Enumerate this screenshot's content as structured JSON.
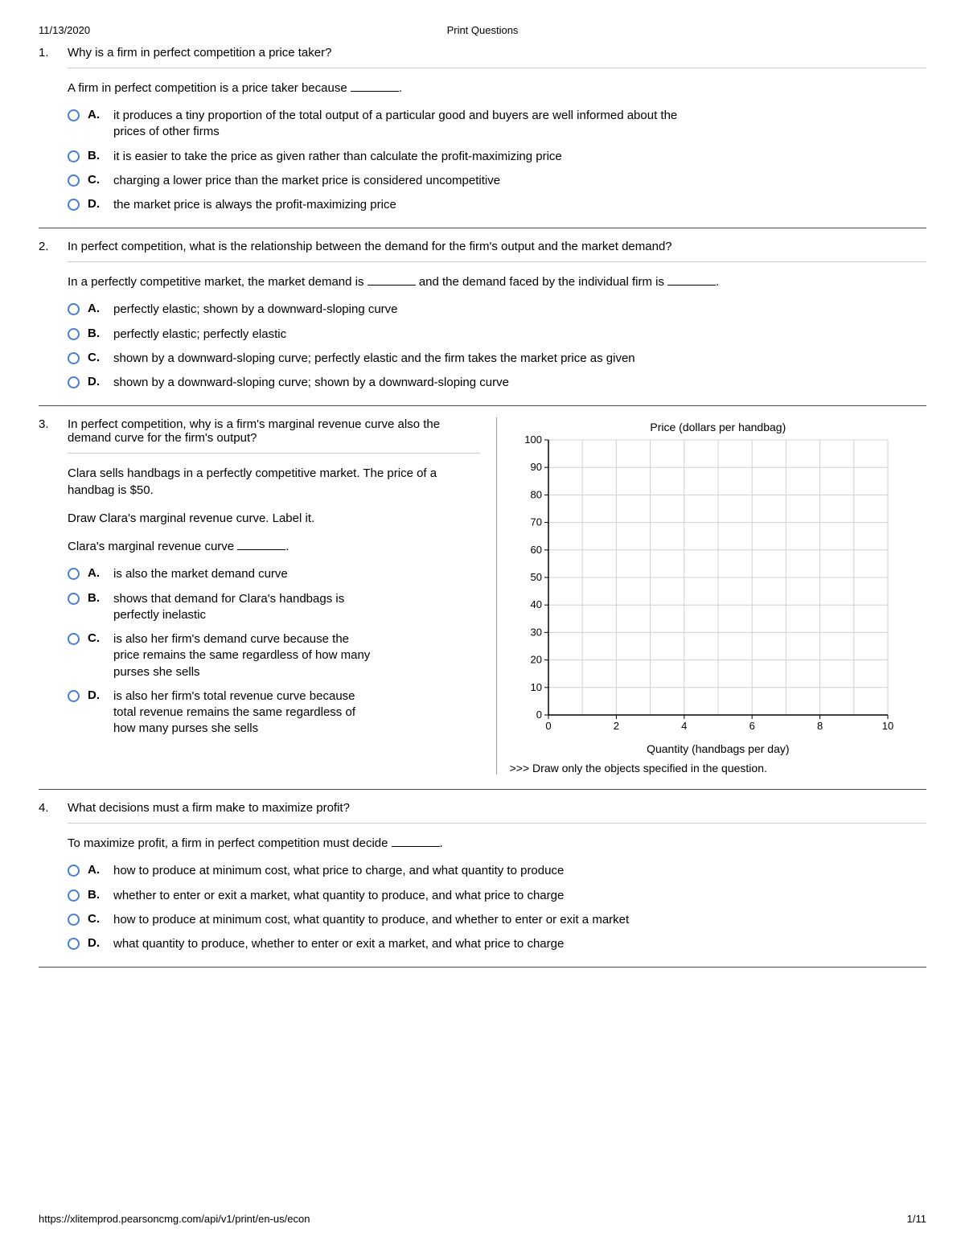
{
  "header": {
    "date": "11/13/2020",
    "title": "Print Questions"
  },
  "footer": {
    "url": "https://xlitemprod.pearsoncmg.com/api/v1/print/en-us/econ",
    "page": "1/11"
  },
  "questions": [
    {
      "number": "1.",
      "title": "Why is a firm in perfect competition a price taker?",
      "prompt_parts": [
        "A firm in perfect competition is a price taker because ",
        "."
      ],
      "options": [
        {
          "letter": "A.",
          "text": "it produces a tiny proportion of the total output of a particular good and buyers are well informed about the prices of other firms"
        },
        {
          "letter": "B.",
          "text": "it is easier to take the price as given rather than calculate the profit-maximizing price"
        },
        {
          "letter": "C.",
          "text": "charging a lower price than the market price is considered uncompetitive"
        },
        {
          "letter": "D.",
          "text": "the market price is always the profit-maximizing price"
        }
      ]
    },
    {
      "number": "2.",
      "title": "In perfect competition, what is the relationship between the demand for the firm's output and the market demand?",
      "prompt_parts": [
        "In a perfectly competitive market, the market demand is ",
        " and the demand faced by the individual firm is ",
        "."
      ],
      "options": [
        {
          "letter": "A.",
          "text": "perfectly elastic; shown by a downward-sloping curve"
        },
        {
          "letter": "B.",
          "text": "perfectly elastic; perfectly elastic"
        },
        {
          "letter": "C.",
          "text": "shown by a downward-sloping curve; perfectly elastic and the firm takes the market price as given"
        },
        {
          "letter": "D.",
          "text": "shown by a downward-sloping curve; shown by a downward-sloping curve"
        }
      ]
    },
    {
      "number": "3.",
      "title": "In perfect competition, why is a firm's marginal revenue curve also the demand curve for the firm's output?",
      "context1": "Clara sells handbags in a perfectly competitive market. The price of a handbag is $50.",
      "context2": "Draw Clara's marginal revenue curve. Label it.",
      "prompt_parts": [
        "Clara's marginal revenue curve ",
        "."
      ],
      "options": [
        {
          "letter": "A.",
          "text": "is also the market demand curve"
        },
        {
          "letter": "B.",
          "text": "shows that demand for Clara's handbags is perfectly inelastic"
        },
        {
          "letter": "C.",
          "text": "is also her firm's demand curve because the price remains the same regardless of how many purses she sells"
        },
        {
          "letter": "D.",
          "text": "is also her firm's total revenue curve because total revenue remains the same regardless of how many purses she sells"
        }
      ],
      "chart": {
        "type": "grid",
        "y_title": "Price (dollars per handbag)",
        "x_title": "Quantity (handbags per day)",
        "xlim": [
          0,
          10
        ],
        "ylim": [
          0,
          100
        ],
        "x_ticks": [
          0,
          2,
          4,
          6,
          8,
          10
        ],
        "y_ticks": [
          0,
          10,
          20,
          30,
          40,
          50,
          60,
          70,
          80,
          90,
          100
        ],
        "grid_color": "#d0d0d0",
        "axis_color": "#000000",
        "background_color": "#ffffff",
        "note": ">>> Draw only the objects specified in the question."
      }
    },
    {
      "number": "4.",
      "title": "What decisions must a firm make to maximize profit?",
      "prompt_parts": [
        "To maximize profit, a firm in perfect competition must decide ",
        "."
      ],
      "options": [
        {
          "letter": "A.",
          "text": "how to produce at minimum cost, what price to charge, and what quantity to produce"
        },
        {
          "letter": "B.",
          "text": "whether to enter or exit a market, what quantity to produce, and what price to charge"
        },
        {
          "letter": "C.",
          "text": "how to produce at minimum cost, what quantity to produce, and whether to enter or exit a market"
        },
        {
          "letter": "D.",
          "text": "what quantity to produce, whether to enter or exit a market, and what price to charge"
        }
      ]
    }
  ]
}
